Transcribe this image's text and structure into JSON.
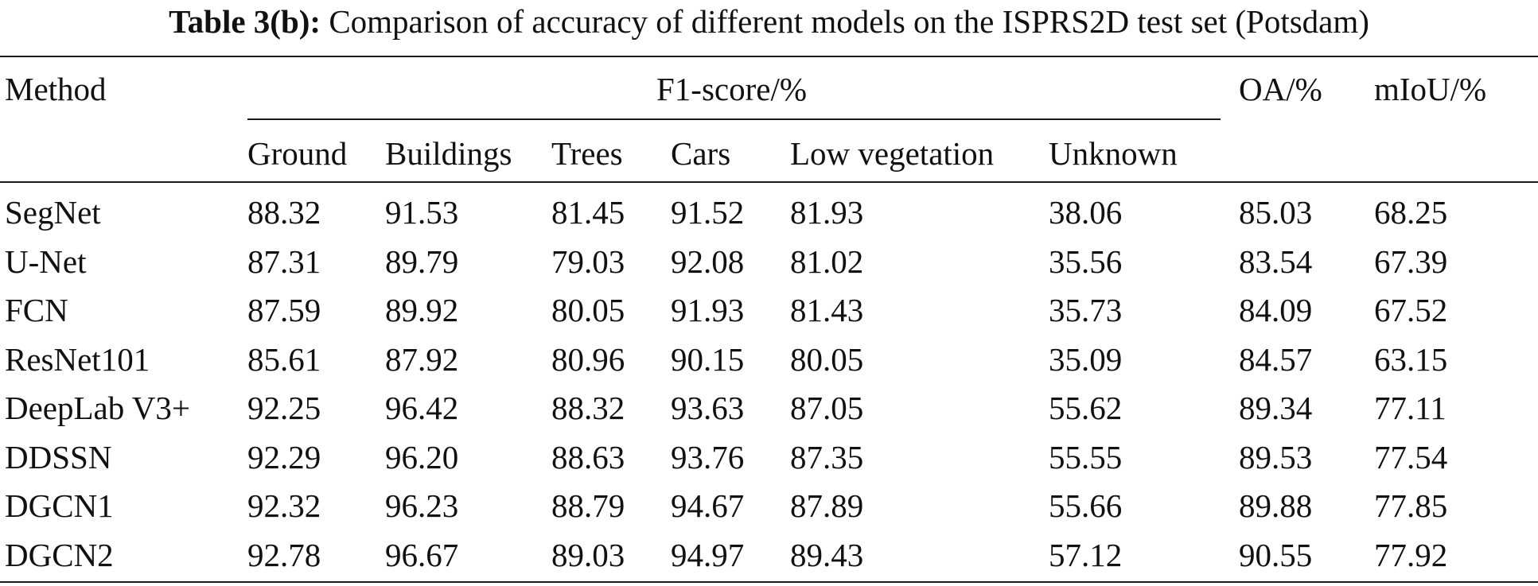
{
  "caption": {
    "label": "Table 3(b):",
    "text": "Comparison of accuracy of different models on the ISPRS2D test set (Potsdam)"
  },
  "header": {
    "method": "Method",
    "group": "F1-score/%",
    "oa": "OA/%",
    "miou": "mIoU/%",
    "classes": [
      "Ground",
      "Buildings",
      "Trees",
      "Cars",
      "Low vegetation",
      "Unknown"
    ]
  },
  "rows": [
    {
      "method": "SegNet",
      "values": [
        "88.32",
        "91.53",
        "81.45",
        "91.52",
        "81.93",
        "38.06",
        "85.03",
        "68.25"
      ]
    },
    {
      "method": "U-Net",
      "values": [
        "87.31",
        "89.79",
        "79.03",
        "92.08",
        "81.02",
        "35.56",
        "83.54",
        "67.39"
      ]
    },
    {
      "method": "FCN",
      "values": [
        "87.59",
        "89.92",
        "80.05",
        "91.93",
        "81.43",
        "35.73",
        "84.09",
        "67.52"
      ]
    },
    {
      "method": "ResNet101",
      "values": [
        "85.61",
        "87.92",
        "80.96",
        "90.15",
        "80.05",
        "35.09",
        "84.57",
        "63.15"
      ]
    },
    {
      "method": "DeepLab V3+",
      "values": [
        "92.25",
        "96.42",
        "88.32",
        "93.63",
        "87.05",
        "55.62",
        "89.34",
        "77.11"
      ]
    },
    {
      "method": "DDSSN",
      "values": [
        "92.29",
        "96.20",
        "88.63",
        "93.76",
        "87.35",
        "55.55",
        "89.53",
        "77.54"
      ]
    },
    {
      "method": "DGCN1",
      "values": [
        "92.32",
        "96.23",
        "88.79",
        "94.67",
        "87.89",
        "55.66",
        "89.88",
        "77.85"
      ]
    },
    {
      "method": "DGCN2",
      "values": [
        "92.78",
        "96.67",
        "89.03",
        "94.97",
        "89.43",
        "57.12",
        "90.55",
        "77.92"
      ]
    }
  ]
}
